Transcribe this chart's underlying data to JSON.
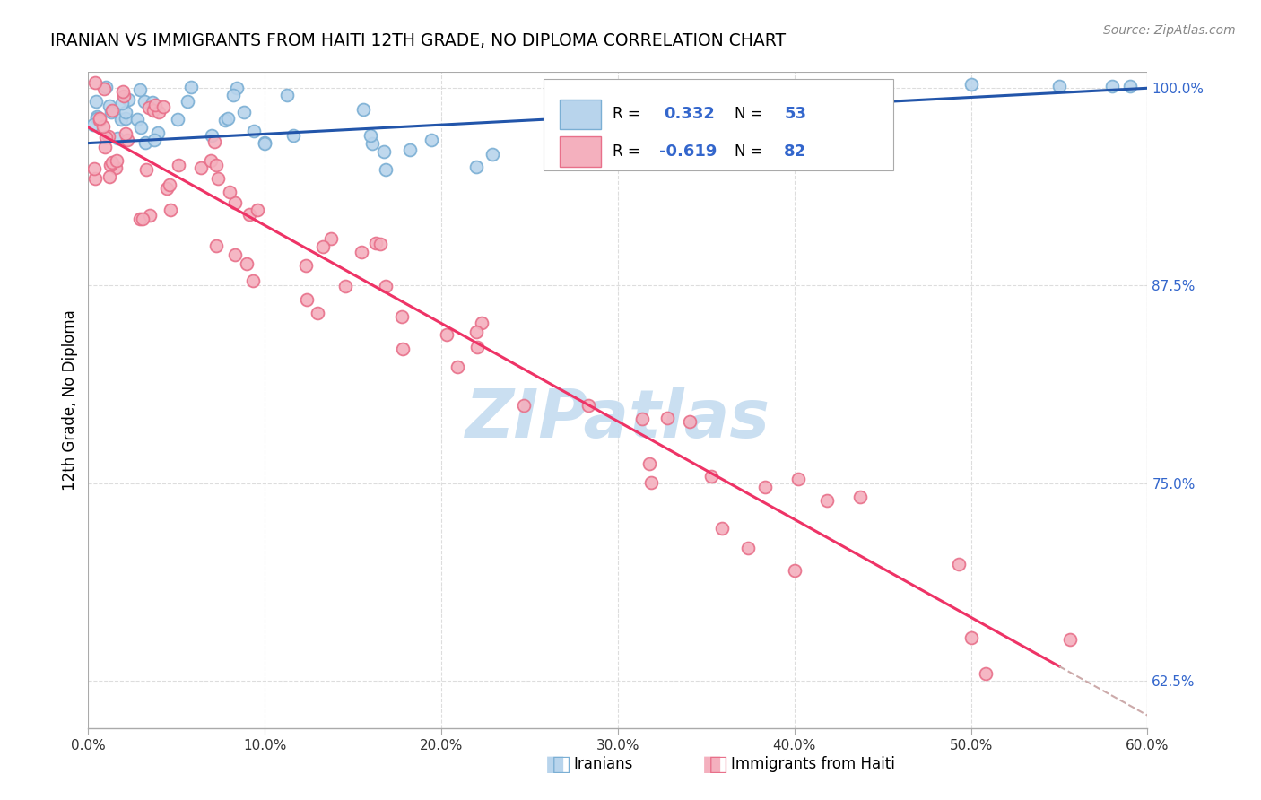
{
  "title": "IRANIAN VS IMMIGRANTS FROM HAITI 12TH GRADE, NO DIPLOMA CORRELATION CHART",
  "source": "Source: ZipAtlas.com",
  "ylabel_label": "12th Grade, No Diploma",
  "xlim": [
    0.0,
    0.6
  ],
  "ylim": [
    0.595,
    1.01
  ],
  "yticks": [
    0.625,
    0.75,
    0.875,
    1.0
  ],
  "xticks": [
    0.0,
    0.1,
    0.2,
    0.3,
    0.4,
    0.5,
    0.6
  ],
  "blue_scatter_color": "#7BAFD4",
  "blue_scatter_fill": "#B8D4EC",
  "pink_scatter_color": "#E8708A",
  "pink_scatter_fill": "#F4B0BE",
  "line_blue_color": "#2255AA",
  "line_pink_color": "#EE3366",
  "line_dash_color": "#CCAAAA",
  "grid_color": "#DDDDDD",
  "watermark_color": "#C5DCF0",
  "legend_r1": "0.332",
  "legend_n1": "53",
  "legend_r2": "-0.619",
  "legend_n2": "82",
  "ytick_color": "#3366CC",
  "xtick_color": "#333333"
}
